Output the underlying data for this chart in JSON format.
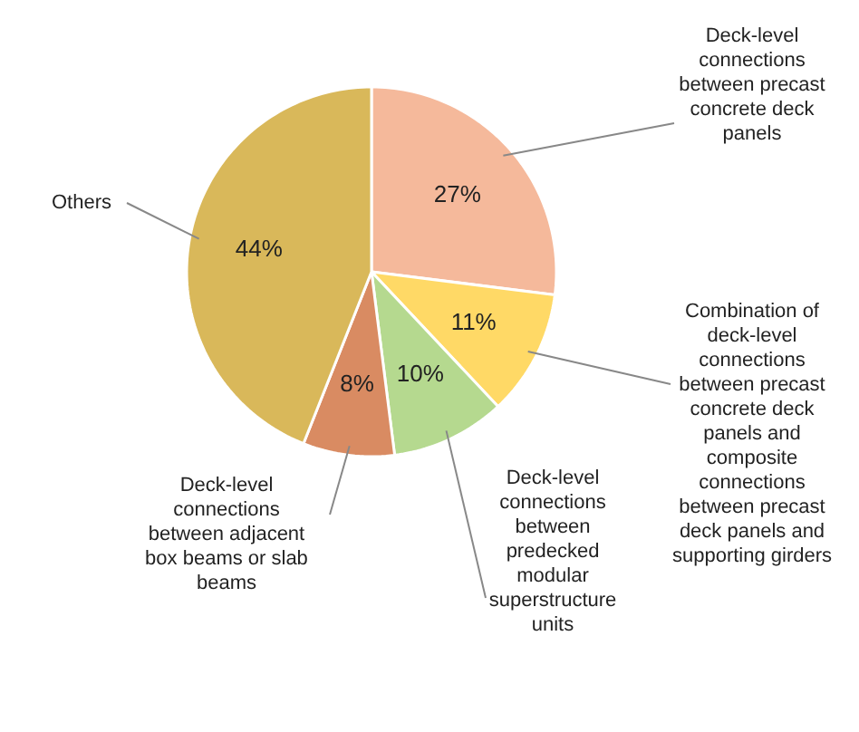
{
  "chart_data": {
    "type": "pie",
    "categories": [
      "Deck-level connections between precast concrete deck panels",
      "Combination of deck-level connections between precast concrete deck panels and composite connections between precast deck panels and supporting girders",
      "Deck-level connections between predecked modular superstructure units",
      "Deck-level connections between adjacent box beams or slab beams",
      "Others"
    ],
    "values": [
      27,
      11,
      10,
      8,
      44
    ],
    "colors": [
      "#f5b99b",
      "#ffd966",
      "#b5d98f",
      "#d98b62",
      "#d9b85a"
    ],
    "value_labels": [
      "27%",
      "11%",
      "10%",
      "8%",
      "44%"
    ]
  }
}
